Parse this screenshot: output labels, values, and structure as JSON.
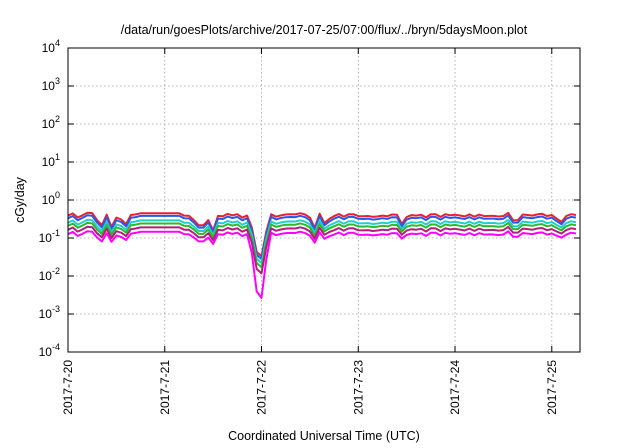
{
  "chart_data": {
    "type": "line",
    "title": "/data/run/goesPlots/archive/2017-07-25/07:00/flux/../bryn/5daysMoon.plot",
    "xlabel": "Coordinated Universal Time (UTC)",
    "ylabel": "cGy/day",
    "yscale": "log",
    "ylim": [
      0.0001,
      10000
    ],
    "xlim": [
      "2017-07-20",
      "2017-07-25 07:00"
    ],
    "grid": true,
    "y_ticks": [
      {
        "base": "10",
        "exp": "-4",
        "value": 0.0001
      },
      {
        "base": "10",
        "exp": "-3",
        "value": 0.001
      },
      {
        "base": "10",
        "exp": "-2",
        "value": 0.01
      },
      {
        "base": "10",
        "exp": "-1",
        "value": 0.1
      },
      {
        "base": "10",
        "exp": "0",
        "value": 1
      },
      {
        "base": "10",
        "exp": "1",
        "value": 10
      },
      {
        "base": "10",
        "exp": "2",
        "value": 100
      },
      {
        "base": "10",
        "exp": "3",
        "value": 1000
      },
      {
        "base": "10",
        "exp": "4",
        "value": 10000
      }
    ],
    "x_ticks": [
      "2017-7-20",
      "2017-7-21",
      "2017-7-22",
      "2017-7-23",
      "2017-7-24",
      "2017-7-25"
    ],
    "series": [
      {
        "color": "#e8212b",
        "base": 0.4
      },
      {
        "color": "#2a57ee",
        "base": 0.34
      },
      {
        "color": "#22d0c8",
        "base": 0.26
      },
      {
        "color": "#2fb82f",
        "base": 0.215
      },
      {
        "color": "#b0207a",
        "base": 0.17
      },
      {
        "color": "#ff00ff",
        "base": 0.13
      }
    ],
    "features": {
      "flat_segment": {
        "start": "2017-07-20 17:00",
        "end": "2017-07-21 04:00"
      },
      "deep_dip": {
        "at": "2017-07-21 23:30",
        "min": 0.001
      },
      "dips": [
        {
          "at": "2017-07-20 08:00",
          "min": 0.06
        },
        {
          "at": "2017-07-20 11:00",
          "min": 0.07
        },
        {
          "at": "2017-07-20 14:00",
          "min": 0.07
        },
        {
          "at": "2017-07-21 08:00",
          "min": 0.06
        },
        {
          "at": "2017-07-21 10:00",
          "min": 0.06
        },
        {
          "at": "2017-07-21 12:00",
          "min": 0.07
        },
        {
          "at": "2017-07-22 13:00",
          "min": 0.065
        },
        {
          "at": "2017-07-22 16:00",
          "min": 0.08
        },
        {
          "at": "2017-07-23 11:00",
          "min": 0.09
        },
        {
          "at": "2017-07-24 15:00",
          "min": 0.09
        },
        {
          "at": "2017-07-25 02:00",
          "min": 0.09
        }
      ]
    }
  }
}
